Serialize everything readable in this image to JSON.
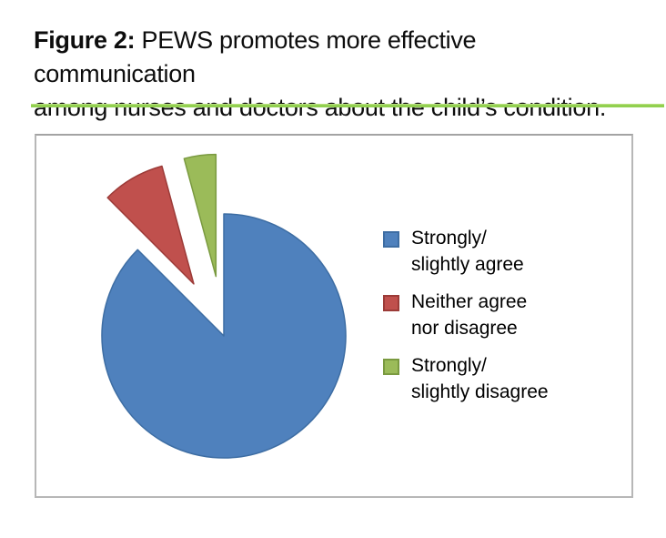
{
  "figure": {
    "title_bold": "Figure 2:",
    "title_line1_rest": " PEWS promotes more effective communication",
    "title_line2": "among nurses and doctors about the child’s condition.",
    "separator_color": "#92D050"
  },
  "chart_data": {
    "type": "pie",
    "title": "Figure 2: PEWS promotes more effective communication among nurses and doctors about the child’s condition.",
    "categories": [
      "Strongly/slightly agree",
      "Neither agree nor disagree",
      "Strongly/slightly disagree"
    ],
    "values": [
      87.5,
      8.3,
      4.2
    ],
    "values_note": "percentages estimated from slice angles (315°, 30°, 15°); no numeric data labels are shown in the figure",
    "legend_position": "right",
    "data_labels_shown": false,
    "start_angle_deg": 0,
    "slices": [
      {
        "label": "Strongly/ slightly agree",
        "value": 87.5,
        "color": "#4F81BD",
        "border": "#3D6DA3",
        "exploded": false
      },
      {
        "label": "Neither agree nor disagree",
        "value": 8.3,
        "color": "#C0504D",
        "border": "#9C3B38",
        "exploded": true
      },
      {
        "label": "Strongly/ slightly disagree",
        "value": 4.2,
        "color": "#9BBB59",
        "border": "#7A9A40",
        "exploded": true
      }
    ]
  },
  "legend": {
    "items": [
      {
        "line1": "Strongly/",
        "line2": "slightly agree",
        "color": "#4F81BD",
        "border": "#3D6DA3"
      },
      {
        "line1": "Neither agree",
        "line2": "nor disagree",
        "color": "#C0504D",
        "border": "#9C3B38"
      },
      {
        "line1": "Strongly/",
        "line2": "slightly disagree",
        "color": "#9BBB59",
        "border": "#7A9A40"
      }
    ]
  }
}
